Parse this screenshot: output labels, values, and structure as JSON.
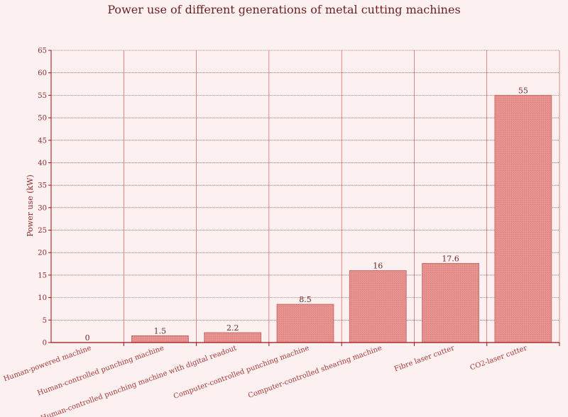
{
  "chart_data": {
    "type": "bar",
    "title": "Power use of different generations of metal cutting machines",
    "xlabel": "",
    "ylabel": "Power use (kW)",
    "categories": [
      "Human-powered machine",
      "Human-controlled punching machine",
      "Human-controlled punching machine with digital readout",
      "Computer-controlled punching machine",
      "Computer-controlled shearing machine",
      "Fibre laser cutter",
      "CO2-laser cutter"
    ],
    "values": [
      0,
      1.5,
      2.2,
      8.5,
      16,
      17.6,
      55
    ],
    "data_labels": [
      "0",
      "1.5",
      "2.2",
      "8.5",
      "16",
      "17.6",
      "55"
    ],
    "ylim": [
      0,
      65
    ],
    "yticks": [
      "0",
      "5",
      "10",
      "15",
      "20",
      "25",
      "30",
      "35",
      "40",
      "45",
      "50",
      "55",
      "60",
      "65"
    ],
    "grid": true,
    "legend": "none",
    "colors": {
      "bar_fill": "#e8908e",
      "bar_stroke": "#c86a68",
      "grid_h": "#7a1a1a",
      "grid_v": "#c84040",
      "axis": "#a01010",
      "background": "#fcf0f0"
    }
  }
}
